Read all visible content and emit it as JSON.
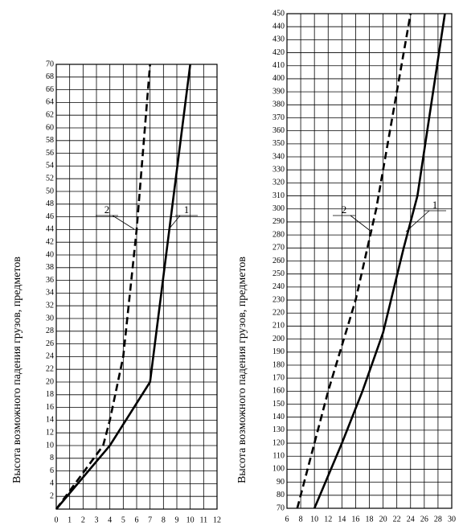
{
  "chart_data": [
    {
      "type": "line",
      "ylabel": "Высота возможного падения грузов, предметов",
      "xlim": [
        0,
        12
      ],
      "ylim": [
        0,
        70
      ],
      "xticks": [
        0,
        1,
        2,
        3,
        4,
        5,
        6,
        7,
        8,
        9,
        10,
        11,
        12
      ],
      "yticks": [
        2,
        4,
        6,
        8,
        10,
        12,
        14,
        16,
        18,
        20,
        22,
        24,
        26,
        28,
        30,
        32,
        34,
        36,
        38,
        40,
        42,
        44,
        46,
        48,
        50,
        52,
        54,
        56,
        58,
        60,
        62,
        64,
        66,
        68,
        70
      ],
      "grid": true,
      "series": [
        {
          "name": "1",
          "color": "#000000",
          "dashed": false,
          "x": [
            0,
            4,
            7,
            10
          ],
          "values": [
            0,
            10,
            20,
            70
          ]
        },
        {
          "name": "2",
          "color": "#000000",
          "dashed": true,
          "x": [
            0,
            3.5,
            4,
            5,
            6,
            7
          ],
          "values": [
            0,
            10,
            14,
            24,
            44,
            70
          ]
        }
      ]
    },
    {
      "type": "line",
      "ylabel": "Высота возможного падения грузов, предметов",
      "xlim": [
        6,
        30
      ],
      "ylim": [
        70,
        450
      ],
      "xticks": [
        6,
        8,
        10,
        12,
        14,
        16,
        18,
        20,
        22,
        24,
        26,
        28,
        30
      ],
      "yticks": [
        70,
        80,
        90,
        100,
        110,
        120,
        130,
        140,
        150,
        160,
        170,
        180,
        190,
        200,
        210,
        220,
        230,
        240,
        250,
        260,
        270,
        280,
        290,
        300,
        310,
        320,
        330,
        340,
        350,
        360,
        370,
        380,
        390,
        400,
        410,
        420,
        430,
        440,
        450
      ],
      "grid": true,
      "series": [
        {
          "name": "1",
          "color": "#000000",
          "dashed": false,
          "x": [
            10,
            14,
            17,
            20,
            23,
            25,
            29
          ],
          "values": [
            70,
            120,
            160,
            205,
            270,
            310,
            450
          ]
        },
        {
          "name": "2",
          "color": "#000000",
          "dashed": true,
          "x": [
            7.5,
            12,
            16,
            19,
            24
          ],
          "values": [
            70,
            160,
            230,
            300,
            450
          ]
        }
      ]
    }
  ]
}
